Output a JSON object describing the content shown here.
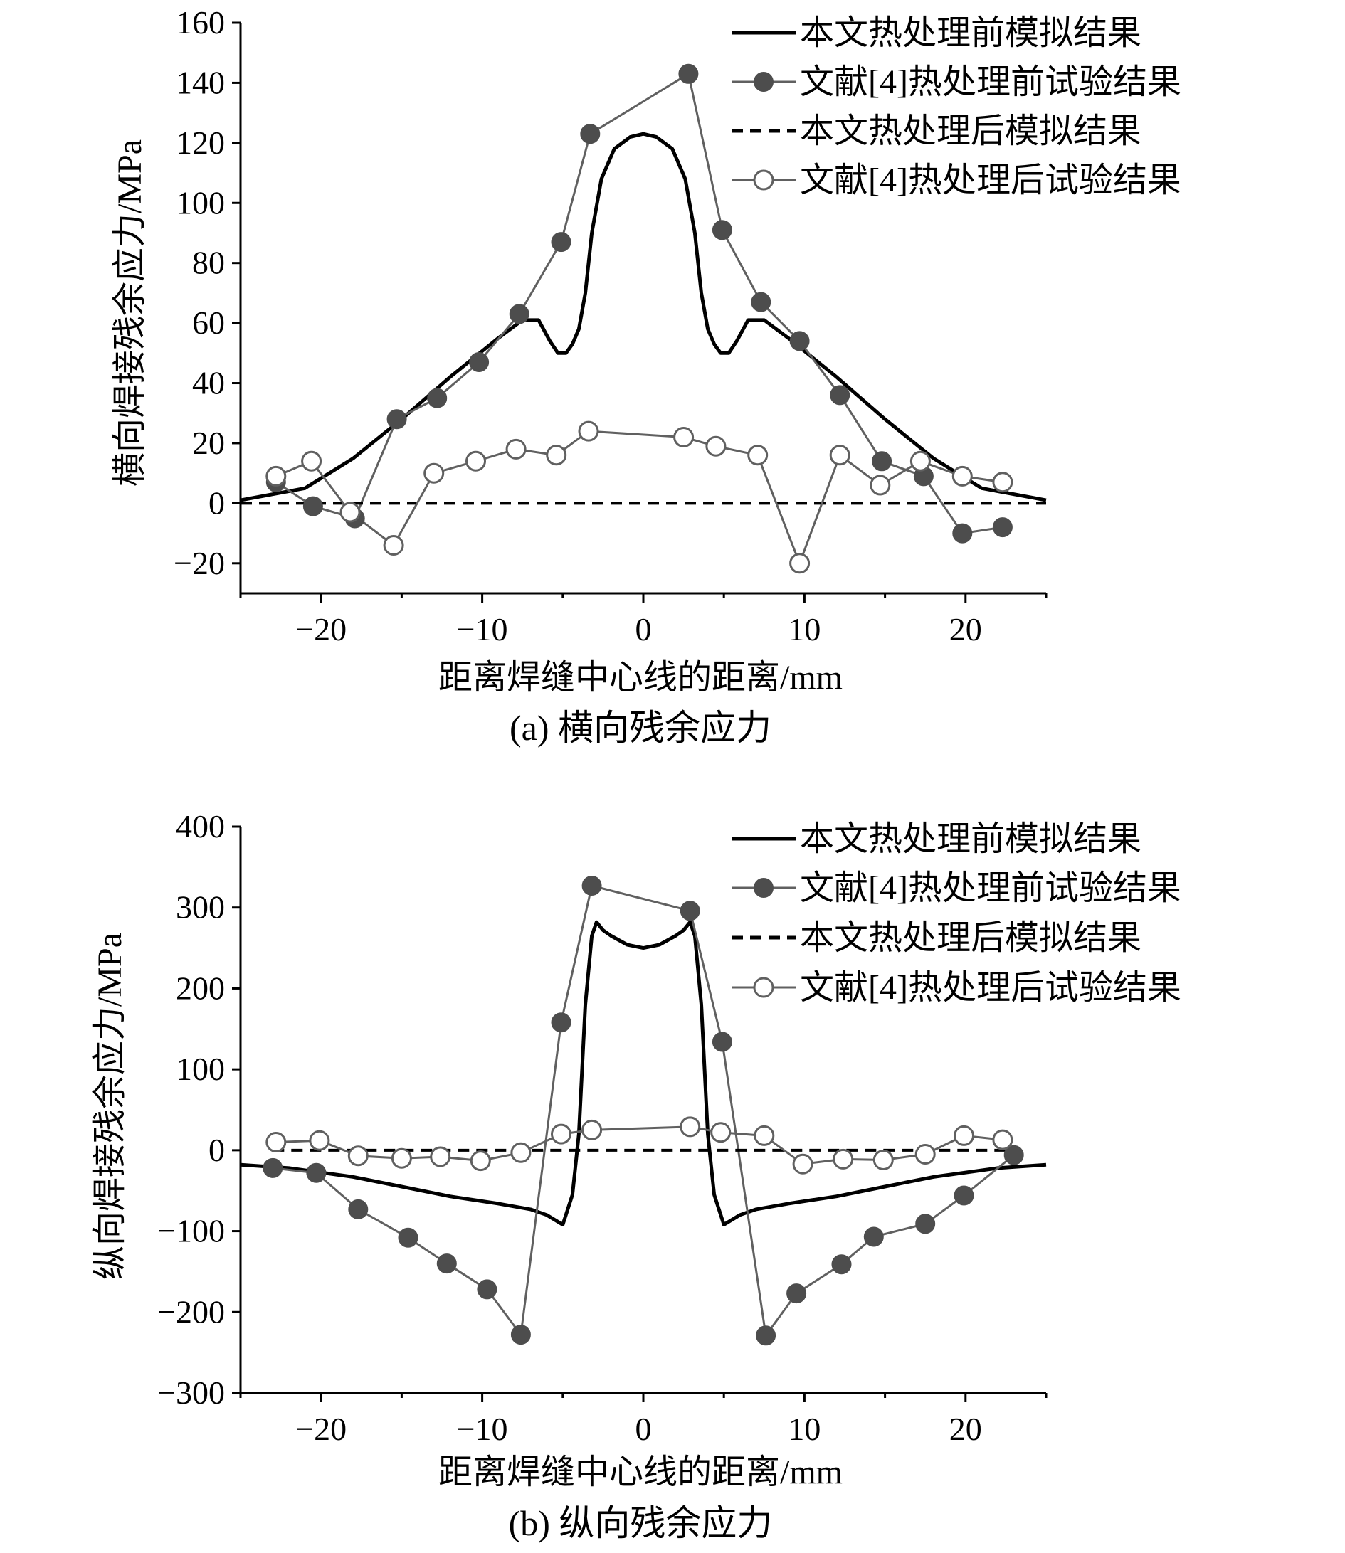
{
  "chart_data": [
    {
      "id": "a",
      "type": "line",
      "caption": "(a) 横向残余应力",
      "xlabel": "距离焊缝中心线的距离/mm",
      "ylabel": "横向焊接残余应力/MPa",
      "xlim": [
        -25,
        25
      ],
      "ylim": [
        -30,
        160
      ],
      "xticks": [
        -20,
        -10,
        0,
        10,
        20
      ],
      "xtick_labels": [
        "−20",
        "−10",
        "0",
        "10",
        "20"
      ],
      "yticks": [
        -20,
        0,
        20,
        40,
        60,
        80,
        100,
        120,
        140,
        160
      ],
      "ytick_labels": [
        "−20",
        "0",
        "20",
        "40",
        "60",
        "80",
        "100",
        "120",
        "140",
        "160"
      ],
      "legend_position": "top-right",
      "series": [
        {
          "name": "本文热处理前模拟结果",
          "style": "solid",
          "x": [
            -25,
            -21,
            -18,
            -15,
            -12,
            -9,
            -7.5,
            -6.5,
            -5.8,
            -5.3,
            -4.8,
            -4.4,
            -4,
            -3.6,
            -3.2,
            -2.6,
            -1.8,
            -0.8,
            0,
            0.8,
            1.8,
            2.6,
            3.2,
            3.6,
            4,
            4.4,
            4.8,
            5.3,
            5.8,
            6.5,
            7.5,
            9,
            12,
            15,
            18,
            21,
            25
          ],
          "y": [
            1,
            5,
            15,
            28,
            42,
            55,
            61,
            61,
            54,
            50,
            50,
            53,
            58,
            70,
            90,
            108,
            118,
            122,
            123,
            122,
            118,
            108,
            90,
            70,
            58,
            53,
            50,
            50,
            54,
            61,
            61,
            55,
            42,
            28,
            15,
            5,
            1
          ]
        },
        {
          "name": "文献[4]热处理前试验结果",
          "style": "marker-filled",
          "x": [
            -22.8,
            -20.5,
            -17.9,
            -15.3,
            -12.8,
            -10.2,
            -7.7,
            -5.1,
            -3.3,
            2.8,
            4.9,
            7.3,
            9.7,
            12.2,
            14.8,
            17.4,
            19.8,
            22.3
          ],
          "y": [
            7,
            -1,
            -5,
            28,
            35,
            47,
            63,
            87,
            123,
            143,
            91,
            67,
            54,
            36,
            14,
            9,
            -10,
            -8
          ]
        },
        {
          "name": "本文热处理后模拟结果",
          "style": "dashed",
          "x": [
            -25,
            25
          ],
          "y": [
            0,
            0
          ]
        },
        {
          "name": "文献[4]热处理后试验结果",
          "style": "marker-open",
          "x": [
            -22.8,
            -20.6,
            -18.2,
            -15.5,
            -13,
            -10.4,
            -7.9,
            -5.4,
            -3.4,
            2.5,
            4.5,
            7.1,
            9.7,
            12.2,
            14.7,
            17.2,
            19.8,
            22.3
          ],
          "y": [
            9,
            14,
            -3,
            -14,
            10,
            14,
            18,
            16,
            24,
            22,
            19,
            16,
            -20,
            16,
            6,
            14,
            9,
            7
          ]
        }
      ]
    },
    {
      "id": "b",
      "type": "line",
      "caption": "(b) 纵向残余应力",
      "xlabel": "距离焊缝中心线的距离/mm",
      "ylabel": "纵向焊接残余应力/MPa",
      "xlim": [
        -25,
        25
      ],
      "ylim": [
        -300,
        400
      ],
      "xticks": [
        -20,
        -10,
        0,
        10,
        20
      ],
      "xtick_labels": [
        "−20",
        "−10",
        "0",
        "10",
        "20"
      ],
      "yticks": [
        -300,
        -200,
        -100,
        0,
        100,
        200,
        300,
        400
      ],
      "ytick_labels": [
        "−300",
        "−200",
        "−100",
        "0",
        "100",
        "200",
        "300",
        "400"
      ],
      "legend_position": "top-right",
      "series": [
        {
          "name": "本文热处理前模拟结果",
          "style": "solid",
          "x": [
            -25,
            -22,
            -18,
            -15,
            -12,
            -9,
            -7,
            -6,
            -5,
            -4.4,
            -4,
            -3.6,
            -3.2,
            -2.9,
            -2.5,
            -2,
            -1,
            0,
            1,
            2,
            2.5,
            2.9,
            3.2,
            3.6,
            4,
            4.4,
            5,
            6,
            7,
            9,
            12,
            15,
            18,
            22,
            25
          ],
          "y": [
            -18,
            -22,
            -33,
            -45,
            -57,
            -66,
            -73,
            -80,
            -92,
            -55,
            20,
            180,
            265,
            282,
            272,
            265,
            254,
            250,
            254,
            265,
            272,
            282,
            265,
            180,
            20,
            -55,
            -92,
            -80,
            -73,
            -66,
            -57,
            -45,
            -33,
            -22,
            -18
          ]
        },
        {
          "name": "文献[4]热处理前试验结果",
          "style": "marker-filled",
          "x": [
            -23,
            -20.3,
            -17.7,
            -14.6,
            -12.2,
            -9.7,
            -7.6,
            -5.1,
            -3.2,
            2.9,
            4.9,
            7.6,
            9.5,
            12.3,
            14.3,
            17.5,
            19.9,
            23
          ],
          "y": [
            -22,
            -28,
            -73,
            -108,
            -140,
            -172,
            -228,
            158,
            327,
            296,
            134,
            -229,
            -177,
            -141,
            -107,
            -91,
            -56,
            -6
          ]
        },
        {
          "name": "本文热处理后模拟结果",
          "style": "dashed",
          "x": [
            -23,
            23
          ],
          "y": [
            0,
            0
          ]
        },
        {
          "name": "文献[4]热处理后试验结果",
          "style": "marker-open",
          "x": [
            -22.8,
            -20.1,
            -17.7,
            -15,
            -12.6,
            -10.1,
            -7.6,
            -5.1,
            -3.2,
            2.9,
            4.8,
            7.5,
            9.9,
            12.4,
            14.9,
            17.5,
            19.9,
            22.3
          ],
          "y": [
            10,
            12,
            -7,
            -10,
            -8,
            -13,
            -3,
            20,
            25,
            29,
            22,
            18,
            -17,
            -11,
            -12,
            -5,
            18,
            13
          ]
        }
      ]
    }
  ]
}
